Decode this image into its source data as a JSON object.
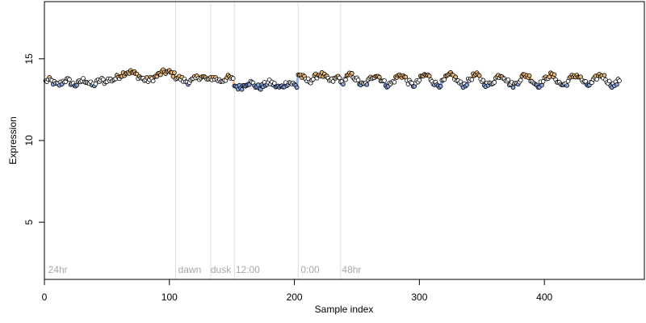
{
  "chart_data": {
    "type": "scatter",
    "title": "",
    "xlabel": "Sample index",
    "ylabel": "Expression",
    "xlim": [
      0,
      480
    ],
    "ylim": [
      1.5,
      18.5
    ],
    "xticks": [
      0,
      100,
      200,
      300,
      400
    ],
    "yticks": [
      5,
      10,
      15
    ],
    "grid": false,
    "phase_boundaries": [
      105,
      133,
      152,
      203,
      237
    ],
    "phase_labels": [
      {
        "text": "24hr",
        "x": 3
      },
      {
        "text": "dawn",
        "x": 107
      },
      {
        "text": "dusk",
        "x": 133
      },
      {
        "text": "12:00",
        "x": 153
      },
      {
        "text": "0:00",
        "x": 205
      },
      {
        "text": "48hr",
        "x": 238
      }
    ],
    "colors": {
      "low": "#8aa4e0",
      "high": "#e8b878",
      "mid": "#ffffff",
      "divider": "#dddddd"
    },
    "x_range": [
      1,
      460
    ],
    "segments": [
      {
        "x_start": 1,
        "x_end": 50,
        "level": 13.55,
        "amplitude": 0.15,
        "period": 14
      },
      {
        "x_start": 50,
        "x_end": 105,
        "level": 13.95,
        "amplitude": 0.25,
        "period": 30
      },
      {
        "x_start": 105,
        "x_end": 133,
        "level": 13.75,
        "amplitude": 0.15,
        "period": 20
      },
      {
        "x_start": 133,
        "x_end": 152,
        "level": 13.75,
        "amplitude": 0.1,
        "period": 12
      },
      {
        "x_start": 152,
        "x_end": 203,
        "level": 13.4,
        "amplitude": 0.15,
        "period": 16
      },
      {
        "x_start": 203,
        "x_end": 237,
        "level": 13.85,
        "amplitude": 0.2,
        "period": 18
      },
      {
        "x_start": 237,
        "x_end": 460,
        "level": 13.7,
        "amplitude": 0.3,
        "period": 20
      }
    ],
    "noise": 0.17
  }
}
